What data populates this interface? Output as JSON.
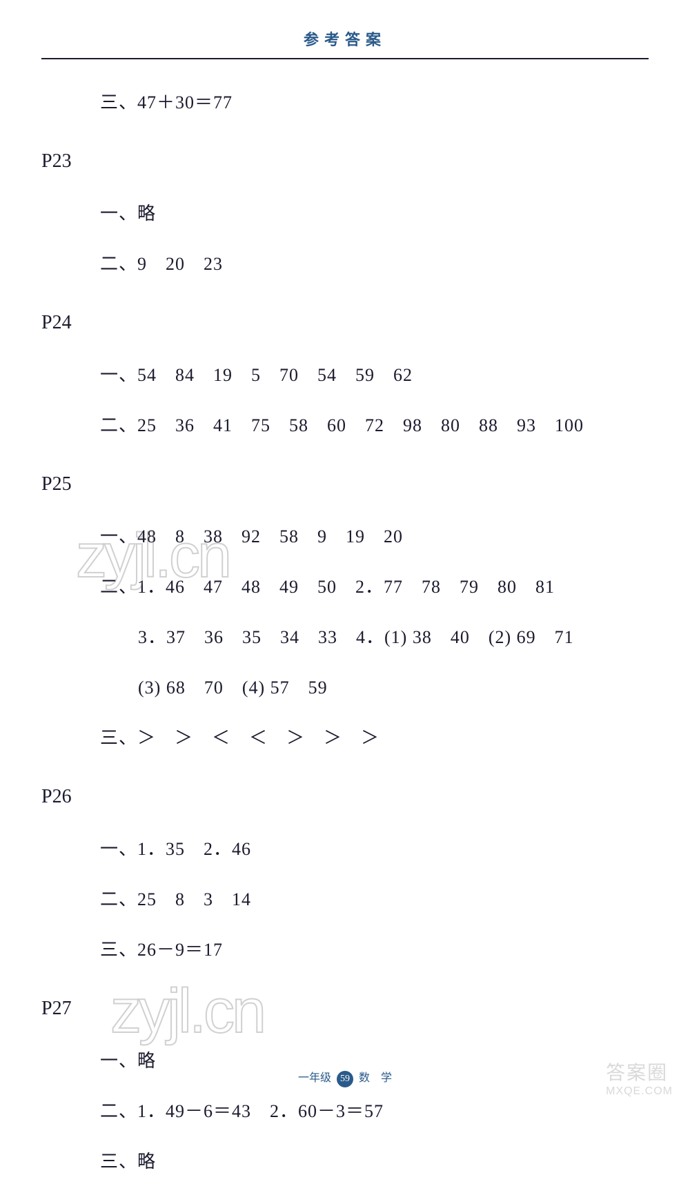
{
  "header": {
    "title": "参考答案"
  },
  "sections": [
    {
      "page_label": "",
      "lines": [
        {
          "indent": false,
          "text": "三、47＋30＝77"
        }
      ]
    },
    {
      "page_label": "P23",
      "lines": [
        {
          "indent": false,
          "text": "一、略"
        },
        {
          "indent": false,
          "text": "二、9　20　23"
        }
      ]
    },
    {
      "page_label": "P24",
      "lines": [
        {
          "indent": false,
          "text": "一、54　84　19　5　70　54　59　62"
        },
        {
          "indent": false,
          "text": "二、25　36　41　75　58　60　72　98　80　88　93　100"
        }
      ]
    },
    {
      "page_label": "P25",
      "lines": [
        {
          "indent": false,
          "text": "一、48　8　38　92　58　9　19　20"
        },
        {
          "indent": false,
          "text": "二、1．46　47　48　49　50　2．77　78　79　80　81"
        },
        {
          "indent": true,
          "text": "3．37　36　35　34　33　4．(1) 38　40　(2) 69　71"
        },
        {
          "indent": true,
          "text": "(3) 68　70　(4) 57　59"
        },
        {
          "indent": false,
          "text": "三、＞　＞　＜　＜　＞　＞　＞"
        }
      ]
    },
    {
      "page_label": "P26",
      "lines": [
        {
          "indent": false,
          "text": "一、1．35　2．46"
        },
        {
          "indent": false,
          "text": "二、25　8　3　14"
        },
        {
          "indent": false,
          "text": "三、26－9＝17"
        }
      ]
    },
    {
      "page_label": "P27",
      "lines": [
        {
          "indent": false,
          "text": "一、略"
        },
        {
          "indent": false,
          "text": "二、1．49－6＝43　2．60－3＝57"
        },
        {
          "indent": false,
          "text": "三、略"
        }
      ]
    }
  ],
  "footer": {
    "left_text": "一年级",
    "page_number": "59",
    "right_text": "数　学"
  },
  "watermarks": {
    "wm1": "zyjl.cn",
    "wm2": "zyjl.cn",
    "corner_line1": "答案圈",
    "corner_line2": "MXQE.COM"
  },
  "colors": {
    "header_color": "#2a5a8a",
    "line_color": "#1a1a2e",
    "text_color": "#1a1a2e",
    "background": "#ffffff"
  },
  "typography": {
    "header_fontsize": 22,
    "body_fontsize": 26,
    "page_label_fontsize": 28,
    "footer_fontsize": 16
  }
}
